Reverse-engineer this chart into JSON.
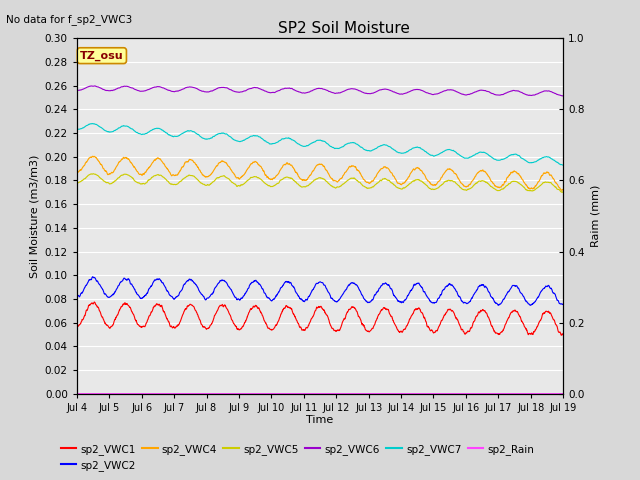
{
  "title": "SP2 Soil Moisture",
  "subtitle": "No data for f_sp2_VWC3",
  "xlabel": "Time",
  "ylabel_left": "Soil Moisture (m3/m3)",
  "ylabel_right": "Raim (mm)",
  "annotation": "TZ_osu",
  "xlim_days": [
    4,
    19
  ],
  "ylim_left": [
    0.0,
    0.3
  ],
  "ylim_right": [
    0.0,
    1.0
  ],
  "xtick_labels": [
    "Jul 4",
    "Jul 5",
    "Jul 6",
    "Jul 7",
    "Jul 8",
    "Jul 9",
    "Jul 10",
    "Jul 11",
    "Jul 12",
    "Jul 13",
    "Jul 14",
    "Jul 15",
    "Jul 16",
    "Jul 17",
    "Jul 18",
    "Jul 19"
  ],
  "xtick_positions": [
    4,
    5,
    6,
    7,
    8,
    9,
    10,
    11,
    12,
    13,
    14,
    15,
    16,
    17,
    18,
    19
  ],
  "ytick_left": [
    0.0,
    0.02,
    0.04,
    0.06,
    0.08,
    0.1,
    0.12,
    0.14,
    0.16,
    0.18,
    0.2,
    0.22,
    0.24,
    0.26,
    0.28,
    0.3
  ],
  "ytick_right": [
    0.0,
    0.2,
    0.4,
    0.6,
    0.8,
    1.0
  ],
  "series": {
    "sp2_VWC1": {
      "color": "#ff0000",
      "base": 0.067,
      "amplitude": 0.01,
      "trend": -0.0005
    },
    "sp2_VWC2": {
      "color": "#0000ff",
      "base": 0.09,
      "amplitude": 0.008,
      "trend": -0.0005
    },
    "sp2_VWC4": {
      "color": "#ffa500",
      "base": 0.194,
      "amplitude": 0.007,
      "trend": -0.001
    },
    "sp2_VWC5": {
      "color": "#cccc00",
      "base": 0.182,
      "amplitude": 0.004,
      "trend": -0.0005
    },
    "sp2_VWC6": {
      "color": "#9900cc",
      "base": 0.258,
      "amplitude": 0.002,
      "trend": -0.0003
    },
    "sp2_VWC7": {
      "color": "#00cccc",
      "base": 0.226,
      "amplitude": 0.003,
      "trend": -0.002
    },
    "sp2_Rain": {
      "color": "#ff44ff",
      "base": 0.0,
      "amplitude": 0.0,
      "trend": 0.0
    }
  },
  "bg_color": "#e8e8e8",
  "grid_color": "#ffffff",
  "fig_width": 6.4,
  "fig_height": 4.8,
  "dpi": 100
}
